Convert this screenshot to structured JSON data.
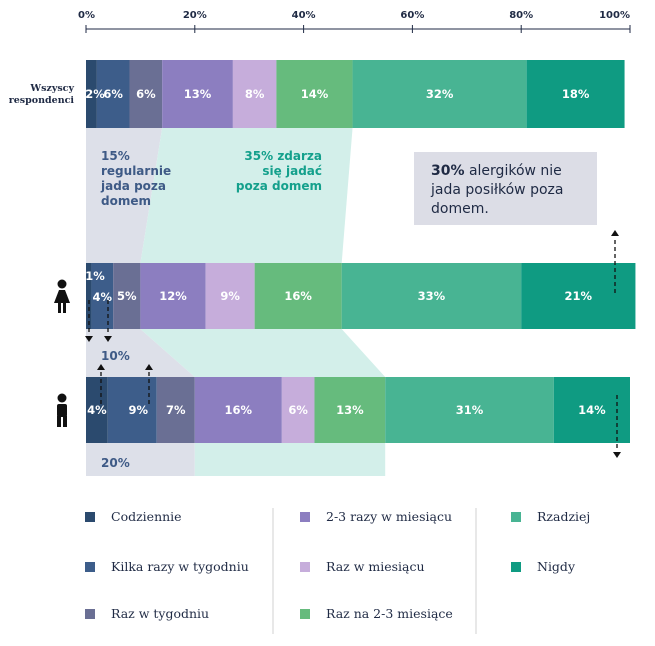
{
  "chart_data": {
    "type": "bar",
    "orientation": "horizontal",
    "stacked": true,
    "xlim": [
      0,
      100
    ],
    "x_ticks": [
      "0%",
      "20%",
      "40%",
      "60%",
      "80%",
      "100%"
    ],
    "categories": [
      "Wszyscy respondenci",
      "",
      ""
    ],
    "category_icons": [
      "",
      "female-icon",
      "male-icon"
    ],
    "series": [
      {
        "name": "Codziennie",
        "color": "#2b4a6e",
        "values": [
          2,
          1,
          4
        ]
      },
      {
        "name": "Kilka razy w tygodniu",
        "color": "#3d5d8a",
        "values": [
          6,
          4,
          9
        ]
      },
      {
        "name": "Raz w tygodniu",
        "color": "#6a6f94",
        "values": [
          6,
          5,
          7
        ]
      },
      {
        "name": "2-3 razy w miesiącu",
        "color": "#8c7ec0",
        "values": [
          13,
          12,
          16
        ]
      },
      {
        "name": "Raz w miesiącu",
        "color": "#c6addb",
        "values": [
          8,
          9,
          6
        ]
      },
      {
        "name": "Raz na 2-3 miesiące",
        "color": "#66bb7d",
        "values": [
          14,
          16,
          13
        ]
      },
      {
        "name": "Rzadziej",
        "color": "#48b493",
        "values": [
          32,
          33,
          31
        ]
      },
      {
        "name": "Nigdy",
        "color": "#0f9b82",
        "values": [
          18,
          21,
          14
        ]
      }
    ],
    "annotations": {
      "regular_lines": [
        "15%",
        "regularnie",
        "jada poza",
        "domem"
      ],
      "sometimes_lines": [
        "35% zdarza",
        "się jadać",
        "poza domem"
      ],
      "callout_bold": "30%",
      "callout_lines": [
        " alergików nie",
        "jada posiłków poza",
        "domem."
      ],
      "female_regular": "10%",
      "male_regular": "20%"
    },
    "legend_position": "bottom"
  }
}
